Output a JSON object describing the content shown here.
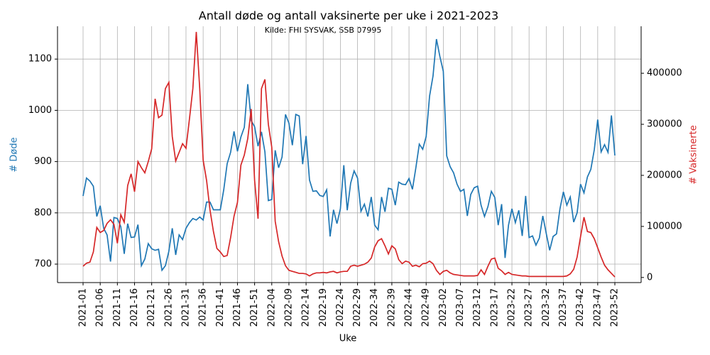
{
  "chart_data": {
    "type": "line",
    "title": "Antall døde og antall vaksinerte per uke i 2021-2023",
    "subtitle": "Kilde: FHI SYSVAK, SSB 07995",
    "x_label": "Uke",
    "y_label": "# Døde",
    "y2_label": "# Vaksinerte",
    "categories": [
      "2021-01",
      null,
      null,
      null,
      null,
      "2021-06",
      null,
      null,
      null,
      null,
      "2021-11",
      null,
      null,
      null,
      null,
      "2021-16",
      null,
      null,
      null,
      null,
      "2021-21",
      null,
      null,
      null,
      null,
      "2021-26",
      null,
      null,
      null,
      null,
      "2021-31",
      null,
      null,
      null,
      null,
      "2021-36",
      null,
      null,
      null,
      null,
      "2021-41",
      null,
      null,
      null,
      null,
      "2021-46",
      null,
      null,
      null,
      null,
      "2021-51",
      null,
      null,
      null,
      null,
      "2022-04",
      null,
      null,
      null,
      null,
      "2022-09",
      null,
      null,
      null,
      null,
      "2022-14",
      null,
      null,
      null,
      null,
      "2022-19",
      null,
      null,
      null,
      null,
      "2022-24",
      null,
      null,
      null,
      null,
      "2022-29",
      null,
      null,
      null,
      null,
      "2022-34",
      null,
      null,
      null,
      null,
      "2022-39",
      null,
      null,
      null,
      null,
      "2022-44",
      null,
      null,
      null,
      null,
      "2022-49",
      null,
      null,
      null,
      null,
      "2023-02",
      null,
      null,
      null,
      null,
      "2023-07",
      null,
      null,
      null,
      null,
      "2023-12",
      null,
      null,
      null,
      null,
      "2023-17",
      null,
      null,
      null,
      null,
      "2023-22",
      null,
      null,
      null,
      null,
      "2023-27",
      null,
      null,
      null,
      null,
      "2023-32",
      null,
      null,
      null,
      null,
      "2023-37",
      null,
      null,
      null,
      null,
      "2023-42",
      null,
      null,
      null,
      null,
      "2023-47",
      null,
      null,
      null,
      null,
      "2023-52"
    ],
    "series": [
      {
        "name": "# Døde",
        "color": "#1f77b4",
        "axis": "y",
        "values": [
          833,
          868,
          862,
          852,
          793,
          814,
          770,
          757,
          705,
          791,
          789,
          773,
          720,
          779,
          752,
          753,
          777,
          697,
          710,
          740,
          730,
          727,
          729,
          688,
          697,
          725,
          770,
          718,
          757,
          748,
          770,
          781,
          789,
          786,
          792,
          786,
          821,
          821,
          806,
          806,
          806,
          845,
          896,
          918,
          959,
          920,
          948,
          967,
          1051,
          980,
          968,
          930,
          958,
          919,
          824,
          826,
          922,
          888,
          909,
          992,
          975,
          932,
          992,
          989,
          895,
          950,
          864,
          842,
          843,
          834,
          832,
          845,
          754,
          806,
          779,
          808,
          893,
          805,
          858,
          882,
          868,
          803,
          817,
          793,
          831,
          776,
          767,
          831,
          802,
          848,
          846,
          815,
          860,
          856,
          855,
          867,
          846,
          888,
          934,
          924,
          949,
          1028,
          1067,
          1139,
          1105,
          1076,
          911,
          890,
          878,
          856,
          842,
          846,
          794,
          836,
          849,
          852,
          815,
          793,
          812,
          842,
          830,
          776,
          817,
          712,
          776,
          808,
          781,
          805,
          755,
          833,
          752,
          755,
          737,
          751,
          794,
          760,
          727,
          754,
          759,
          808,
          841,
          815,
          831,
          782,
          800,
          856,
          839,
          870,
          885,
          923,
          982,
          919,
          933,
          918,
          990,
          912
        ]
      },
      {
        "name": "# Vaksinerte",
        "color": "#d62728",
        "axis": "y2",
        "values": [
          22000,
          28000,
          30000,
          50000,
          98000,
          88000,
          92000,
          106000,
          113000,
          104000,
          67000,
          123000,
          108000,
          180000,
          203000,
          168000,
          227000,
          215000,
          205000,
          227000,
          252000,
          350000,
          313000,
          318000,
          370000,
          382000,
          276000,
          228000,
          245000,
          262000,
          253000,
          310000,
          370000,
          481000,
          370000,
          230000,
          190000,
          132000,
          90000,
          57000,
          50000,
          41000,
          43000,
          78000,
          120000,
          147000,
          220000,
          240000,
          272000,
          330000,
          190000,
          115000,
          370000,
          388000,
          300000,
          255000,
          110000,
          70000,
          42000,
          23000,
          14000,
          12000,
          10000,
          8000,
          8000,
          7000,
          3000,
          7000,
          9000,
          9000,
          10000,
          9000,
          11000,
          12000,
          9000,
          11000,
          12000,
          12000,
          22000,
          24000,
          22000,
          24000,
          26000,
          30000,
          38000,
          60000,
          72000,
          76000,
          62000,
          46000,
          62000,
          56000,
          35000,
          27000,
          32000,
          30000,
          22000,
          24000,
          21000,
          27000,
          28000,
          32000,
          27000,
          14000,
          6000,
          12000,
          14000,
          9000,
          6000,
          5000,
          4000,
          3000,
          3000,
          3000,
          3000,
          4000,
          15000,
          6000,
          22000,
          36000,
          38000,
          18000,
          13000,
          6000,
          10000,
          6000,
          5000,
          4000,
          3000,
          3000,
          2000,
          2000,
          2000,
          2000,
          2000,
          2000,
          2000,
          2000,
          2000,
          2000,
          2000,
          3000,
          7000,
          16000,
          40000,
          80000,
          118000,
          90000,
          88000,
          76000,
          58000,
          40000,
          24000,
          15000,
          8000,
          1000
        ]
      }
    ],
    "ylim": [
      664,
      1164
    ],
    "yticks": [
      700,
      800,
      900,
      1000,
      1100
    ],
    "y2lim": [
      -10000,
      492000
    ],
    "y2ticks": [
      0,
      100000,
      200000,
      300000,
      400000
    ],
    "grid": true
  }
}
